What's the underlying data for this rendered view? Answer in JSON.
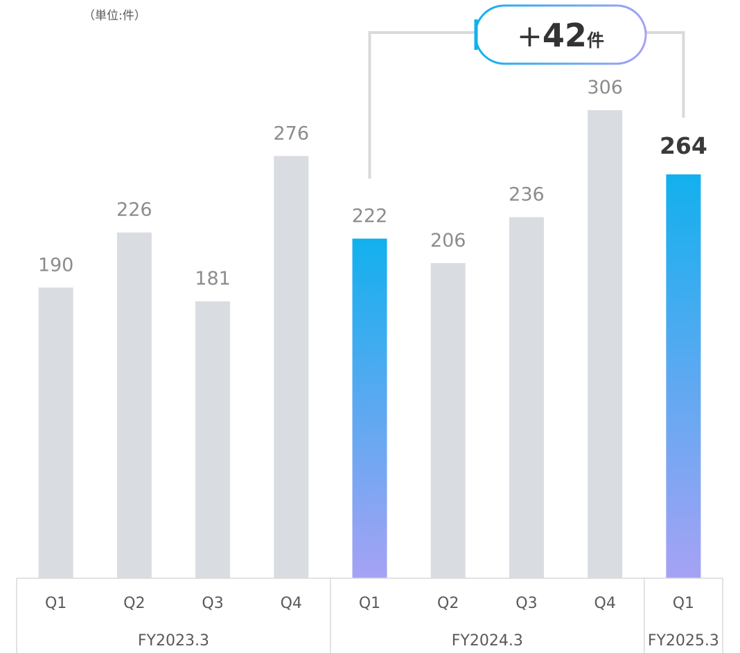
{
  "unit_label": "（単位:件）",
  "chart_data": {
    "type": "bar",
    "categories": [
      "Q1",
      "Q2",
      "Q3",
      "Q4",
      "Q1",
      "Q2",
      "Q3",
      "Q4",
      "Q1"
    ],
    "groups": [
      {
        "label": "FY2023.3",
        "count": 4
      },
      {
        "label": "FY2024.3",
        "count": 4
      },
      {
        "label": "FY2025.3",
        "count": 1
      }
    ],
    "values": [
      190,
      226,
      181,
      276,
      222,
      206,
      236,
      306,
      264
    ],
    "highlight_indices": [
      4,
      8
    ],
    "value_labels": [
      "190",
      "226",
      "181",
      "276",
      "222",
      "206",
      "236",
      "306",
      "264"
    ],
    "annotation": {
      "prefix": "+",
      "number": "42",
      "suffix": "件",
      "from_index": 4,
      "to_index": 8
    },
    "colors": {
      "bar": "#d9dce0",
      "highlight_top": "#12b0ee",
      "highlight_bottom": "#a6a2f4",
      "connector": "#d9d9d9",
      "axis": "#d9d9d9"
    },
    "xlabel": "",
    "ylabel": "",
    "ylim": [
      0,
      306
    ],
    "grid": false
  }
}
